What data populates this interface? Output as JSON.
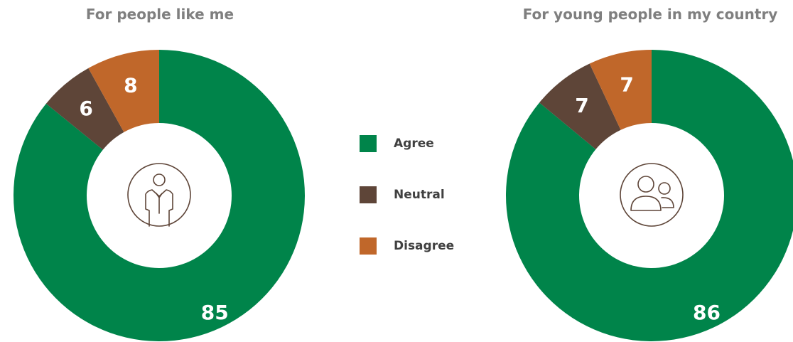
{
  "chart_data": [
    {
      "type": "pie",
      "title": "For people like me",
      "categories": [
        "Agree",
        "Neutral",
        "Disagree"
      ],
      "values": [
        85,
        6,
        8
      ],
      "center_icon": "person-icon"
    },
    {
      "type": "pie",
      "title": "For young people in my country",
      "categories": [
        "Agree",
        "Neutral",
        "Disagree"
      ],
      "values": [
        86,
        7,
        7
      ],
      "center_icon": "group-icon"
    }
  ],
  "legend": [
    {
      "label": "Agree",
      "color": "#00844a"
    },
    {
      "label": "Neutral",
      "color": "#5e4538"
    },
    {
      "label": "Disagree",
      "color": "#c0672a"
    }
  ]
}
